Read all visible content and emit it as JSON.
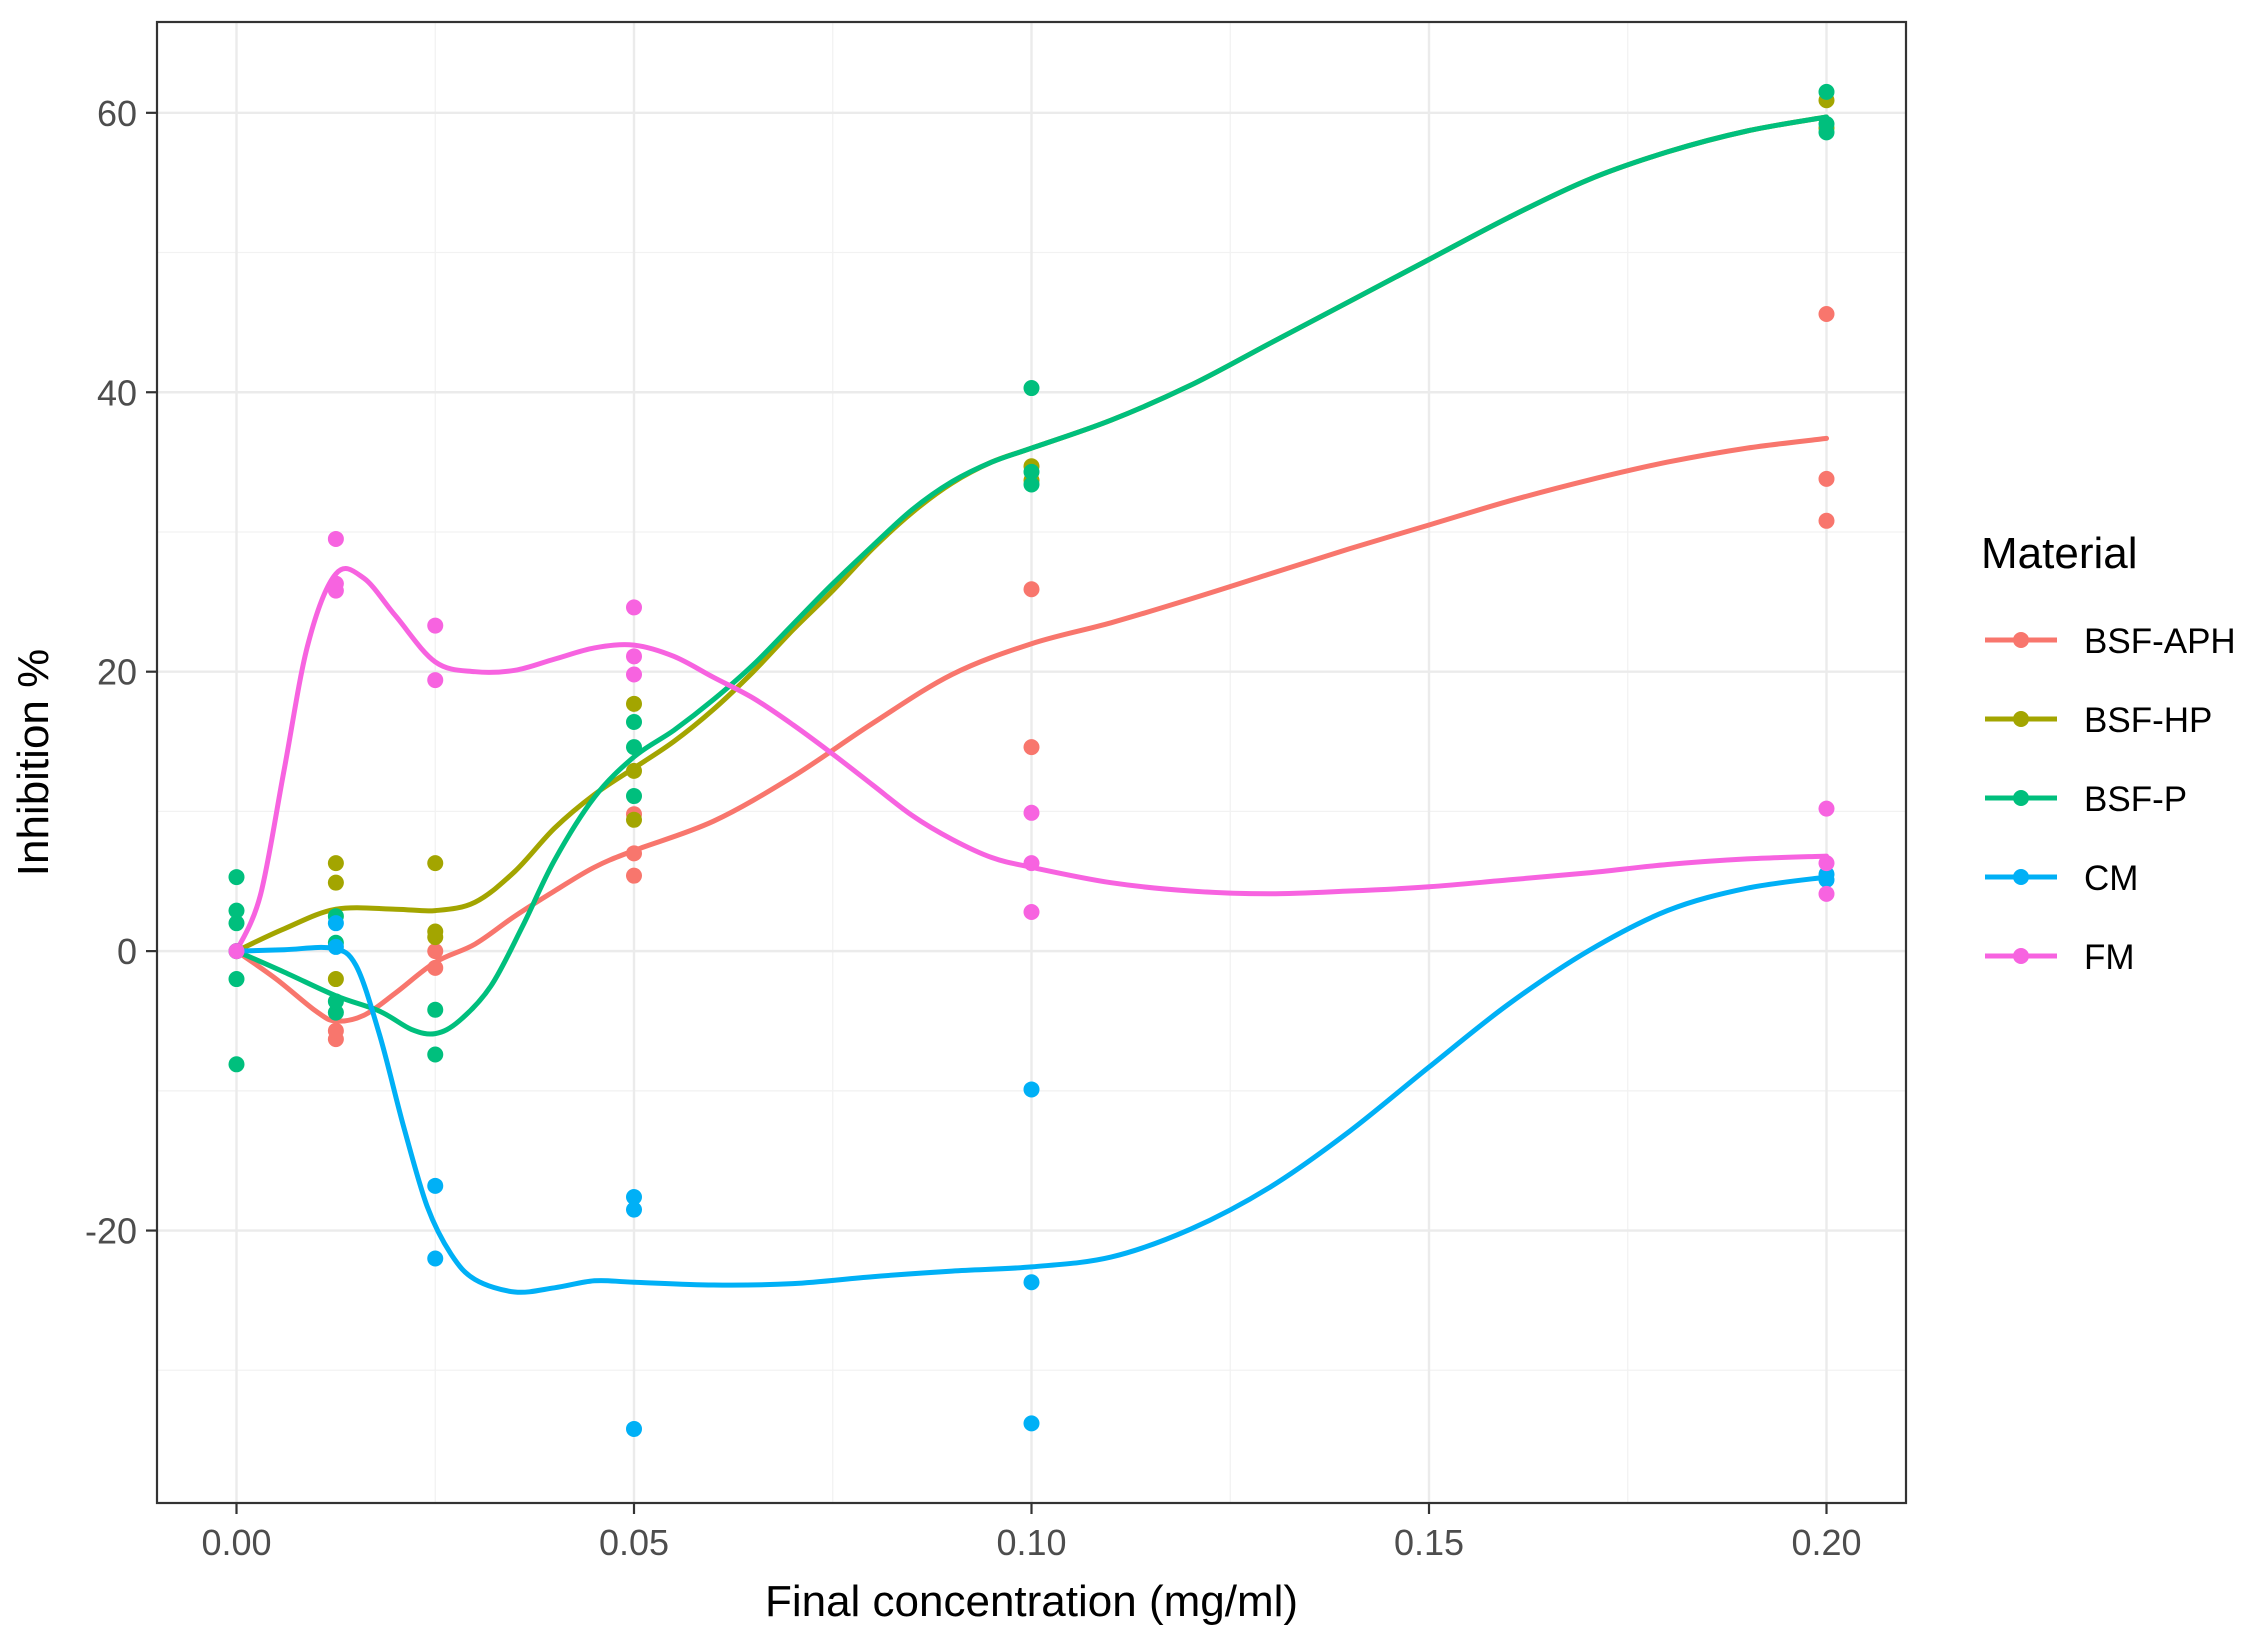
{
  "chart_data": {
    "type": "scatter",
    "subtype": "scatter with smoothed (loess) trend lines",
    "title": "",
    "xlabel": "Final concentration (mg/ml)",
    "ylabel": "Inhibition %",
    "xlim": [
      -0.01,
      0.21
    ],
    "ylim": [
      -39.5,
      66.5
    ],
    "x_ticks": [
      0.0,
      0.05,
      0.1,
      0.15,
      0.2
    ],
    "x_tick_labels": [
      "0.00",
      "0.05",
      "0.10",
      "0.15",
      "0.20"
    ],
    "y_ticks": [
      -20,
      0,
      20,
      40,
      60
    ],
    "y_tick_labels": [
      "-20",
      "0",
      "20",
      "40",
      "60"
    ],
    "grid": true,
    "legend_title": "Material",
    "legend_position": "right",
    "series": [
      {
        "name": "BSF-APH",
        "color": "#F8766D",
        "points": [
          [
            0.0,
            0.0
          ],
          [
            0.0125,
            -6.3
          ],
          [
            0.0125,
            -5.7
          ],
          [
            0.025,
            -1.2
          ],
          [
            0.025,
            0.0
          ],
          [
            0.05,
            5.4
          ],
          [
            0.05,
            7.0
          ],
          [
            0.05,
            9.8
          ],
          [
            0.1,
            14.6
          ],
          [
            0.1,
            25.9
          ],
          [
            0.2,
            30.8
          ],
          [
            0.2,
            33.8
          ],
          [
            0.2,
            45.6
          ]
        ],
        "smooth": [
          [
            0.0,
            0.0
          ],
          [
            0.005,
            -2.0
          ],
          [
            0.01,
            -4.3
          ],
          [
            0.0125,
            -5.0
          ],
          [
            0.016,
            -4.6
          ],
          [
            0.02,
            -3.0
          ],
          [
            0.025,
            -0.8
          ],
          [
            0.03,
            0.5
          ],
          [
            0.035,
            2.5
          ],
          [
            0.04,
            4.3
          ],
          [
            0.045,
            6.0
          ],
          [
            0.05,
            7.2
          ],
          [
            0.06,
            9.3
          ],
          [
            0.07,
            12.5
          ],
          [
            0.08,
            16.3
          ],
          [
            0.09,
            19.8
          ],
          [
            0.1,
            22.0
          ],
          [
            0.11,
            23.5
          ],
          [
            0.12,
            25.2
          ],
          [
            0.13,
            27.0
          ],
          [
            0.14,
            28.8
          ],
          [
            0.15,
            30.5
          ],
          [
            0.16,
            32.2
          ],
          [
            0.17,
            33.7
          ],
          [
            0.18,
            35.0
          ],
          [
            0.19,
            36.0
          ],
          [
            0.2,
            36.7
          ]
        ]
      },
      {
        "name": "BSF-HP",
        "color": "#A3A500",
        "points": [
          [
            0.0,
            0.0
          ],
          [
            0.0125,
            -2.0
          ],
          [
            0.0125,
            4.9
          ],
          [
            0.0125,
            6.3
          ],
          [
            0.025,
            1.0
          ],
          [
            0.025,
            1.4
          ],
          [
            0.025,
            6.3
          ],
          [
            0.05,
            9.4
          ],
          [
            0.05,
            12.9
          ],
          [
            0.05,
            17.7
          ],
          [
            0.1,
            33.7
          ],
          [
            0.1,
            34.7
          ],
          [
            0.2,
            58.9
          ],
          [
            0.2,
            60.9
          ]
        ],
        "smooth": [
          [
            0.0,
            0.0
          ],
          [
            0.006,
            1.6
          ],
          [
            0.0125,
            3.0
          ],
          [
            0.02,
            3.0
          ],
          [
            0.025,
            2.9
          ],
          [
            0.03,
            3.5
          ],
          [
            0.035,
            5.7
          ],
          [
            0.04,
            8.8
          ],
          [
            0.045,
            11.2
          ],
          [
            0.05,
            13.1
          ],
          [
            0.055,
            15.0
          ],
          [
            0.06,
            17.3
          ],
          [
            0.065,
            20.0
          ],
          [
            0.07,
            23.0
          ],
          [
            0.075,
            25.8
          ],
          [
            0.08,
            28.8
          ],
          [
            0.085,
            31.4
          ],
          [
            0.09,
            33.5
          ],
          [
            0.095,
            35.0
          ],
          [
            0.1,
            36.0
          ],
          [
            0.11,
            38.0
          ],
          [
            0.12,
            40.5
          ],
          [
            0.13,
            43.5
          ],
          [
            0.14,
            46.5
          ],
          [
            0.15,
            49.5
          ],
          [
            0.16,
            52.5
          ],
          [
            0.17,
            55.2
          ],
          [
            0.18,
            57.2
          ],
          [
            0.19,
            58.7
          ],
          [
            0.2,
            59.7
          ]
        ]
      },
      {
        "name": "BSF-P",
        "color": "#00BF7D",
        "points": [
          [
            0.0,
            -8.1
          ],
          [
            0.0,
            -2.0
          ],
          [
            0.0,
            2.0
          ],
          [
            0.0,
            2.9
          ],
          [
            0.0,
            5.3
          ],
          [
            0.0125,
            -4.4
          ],
          [
            0.0125,
            -3.6
          ],
          [
            0.0125,
            0.6
          ],
          [
            0.0125,
            2.5
          ],
          [
            0.025,
            -7.4
          ],
          [
            0.025,
            -4.2
          ],
          [
            0.05,
            11.1
          ],
          [
            0.05,
            14.6
          ],
          [
            0.05,
            16.4
          ],
          [
            0.1,
            33.4
          ],
          [
            0.1,
            34.3
          ],
          [
            0.1,
            40.3
          ],
          [
            0.2,
            58.6
          ],
          [
            0.2,
            59.2
          ],
          [
            0.2,
            61.5
          ]
        ],
        "smooth": [
          [
            0.0,
            0.0
          ],
          [
            0.006,
            -1.5
          ],
          [
            0.0125,
            -3.2
          ],
          [
            0.018,
            -4.3
          ],
          [
            0.022,
            -5.6
          ],
          [
            0.025,
            -5.9
          ],
          [
            0.028,
            -5.0
          ],
          [
            0.032,
            -2.5
          ],
          [
            0.036,
            1.8
          ],
          [
            0.04,
            6.5
          ],
          [
            0.045,
            11.0
          ],
          [
            0.05,
            13.9
          ],
          [
            0.055,
            15.8
          ],
          [
            0.06,
            18.0
          ],
          [
            0.065,
            20.5
          ],
          [
            0.07,
            23.4
          ],
          [
            0.075,
            26.3
          ],
          [
            0.08,
            29.0
          ],
          [
            0.085,
            31.6
          ],
          [
            0.09,
            33.6
          ],
          [
            0.095,
            35.0
          ],
          [
            0.1,
            36.0
          ],
          [
            0.11,
            38.0
          ],
          [
            0.12,
            40.5
          ],
          [
            0.13,
            43.5
          ],
          [
            0.14,
            46.5
          ],
          [
            0.15,
            49.5
          ],
          [
            0.16,
            52.5
          ],
          [
            0.17,
            55.2
          ],
          [
            0.18,
            57.2
          ],
          [
            0.19,
            58.7
          ],
          [
            0.2,
            59.7
          ]
        ]
      },
      {
        "name": "CM",
        "color": "#00B0F6",
        "points": [
          [
            0.0,
            0.0
          ],
          [
            0.0125,
            2.0
          ],
          [
            0.0125,
            0.3
          ],
          [
            0.025,
            -16.8
          ],
          [
            0.025,
            -22.0
          ],
          [
            0.05,
            -17.6
          ],
          [
            0.05,
            -18.5
          ],
          [
            0.05,
            -34.2
          ],
          [
            0.1,
            -9.9
          ],
          [
            0.1,
            -23.7
          ],
          [
            0.1,
            -33.8
          ],
          [
            0.2,
            5.1
          ],
          [
            0.2,
            5.5
          ]
        ],
        "smooth": [
          [
            0.0,
            0.0
          ],
          [
            0.006,
            0.1
          ],
          [
            0.012,
            0.2
          ],
          [
            0.015,
            -1.0
          ],
          [
            0.018,
            -6.0
          ],
          [
            0.021,
            -12.5
          ],
          [
            0.024,
            -18.3
          ],
          [
            0.027,
            -21.7
          ],
          [
            0.03,
            -23.5
          ],
          [
            0.035,
            -24.4
          ],
          [
            0.04,
            -24.1
          ],
          [
            0.045,
            -23.6
          ],
          [
            0.05,
            -23.7
          ],
          [
            0.06,
            -23.9
          ],
          [
            0.07,
            -23.8
          ],
          [
            0.08,
            -23.3
          ],
          [
            0.09,
            -22.9
          ],
          [
            0.1,
            -22.6
          ],
          [
            0.11,
            -21.9
          ],
          [
            0.12,
            -19.9
          ],
          [
            0.13,
            -16.9
          ],
          [
            0.14,
            -12.9
          ],
          [
            0.15,
            -8.3
          ],
          [
            0.16,
            -3.8
          ],
          [
            0.17,
            0.0
          ],
          [
            0.18,
            2.9
          ],
          [
            0.19,
            4.5
          ],
          [
            0.2,
            5.3
          ]
        ]
      },
      {
        "name": "FM",
        "color": "#F763E0",
        "points": [
          [
            0.0,
            0.0
          ],
          [
            0.0125,
            25.8
          ],
          [
            0.0125,
            26.3
          ],
          [
            0.0125,
            29.5
          ],
          [
            0.025,
            19.4
          ],
          [
            0.025,
            23.3
          ],
          [
            0.05,
            19.8
          ],
          [
            0.05,
            21.1
          ],
          [
            0.05,
            24.6
          ],
          [
            0.1,
            2.8
          ],
          [
            0.1,
            6.3
          ],
          [
            0.1,
            9.9
          ],
          [
            0.2,
            4.1
          ],
          [
            0.2,
            6.3
          ],
          [
            0.2,
            10.2
          ]
        ],
        "smooth": [
          [
            0.0,
            0.0
          ],
          [
            0.003,
            4.0
          ],
          [
            0.006,
            13.0
          ],
          [
            0.009,
            22.0
          ],
          [
            0.0125,
            27.0
          ],
          [
            0.016,
            26.7
          ],
          [
            0.02,
            24.0
          ],
          [
            0.025,
            20.7
          ],
          [
            0.03,
            20.0
          ],
          [
            0.035,
            20.1
          ],
          [
            0.04,
            20.9
          ],
          [
            0.045,
            21.7
          ],
          [
            0.05,
            21.9
          ],
          [
            0.055,
            21.1
          ],
          [
            0.06,
            19.6
          ],
          [
            0.065,
            18.1
          ],
          [
            0.07,
            16.2
          ],
          [
            0.075,
            14.1
          ],
          [
            0.08,
            11.9
          ],
          [
            0.085,
            9.7
          ],
          [
            0.09,
            8.0
          ],
          [
            0.095,
            6.7
          ],
          [
            0.1,
            6.0
          ],
          [
            0.11,
            4.9
          ],
          [
            0.12,
            4.3
          ],
          [
            0.13,
            4.1
          ],
          [
            0.14,
            4.3
          ],
          [
            0.15,
            4.6
          ],
          [
            0.16,
            5.1
          ],
          [
            0.17,
            5.6
          ],
          [
            0.18,
            6.2
          ],
          [
            0.19,
            6.6
          ],
          [
            0.2,
            6.8
          ]
        ]
      }
    ]
  }
}
